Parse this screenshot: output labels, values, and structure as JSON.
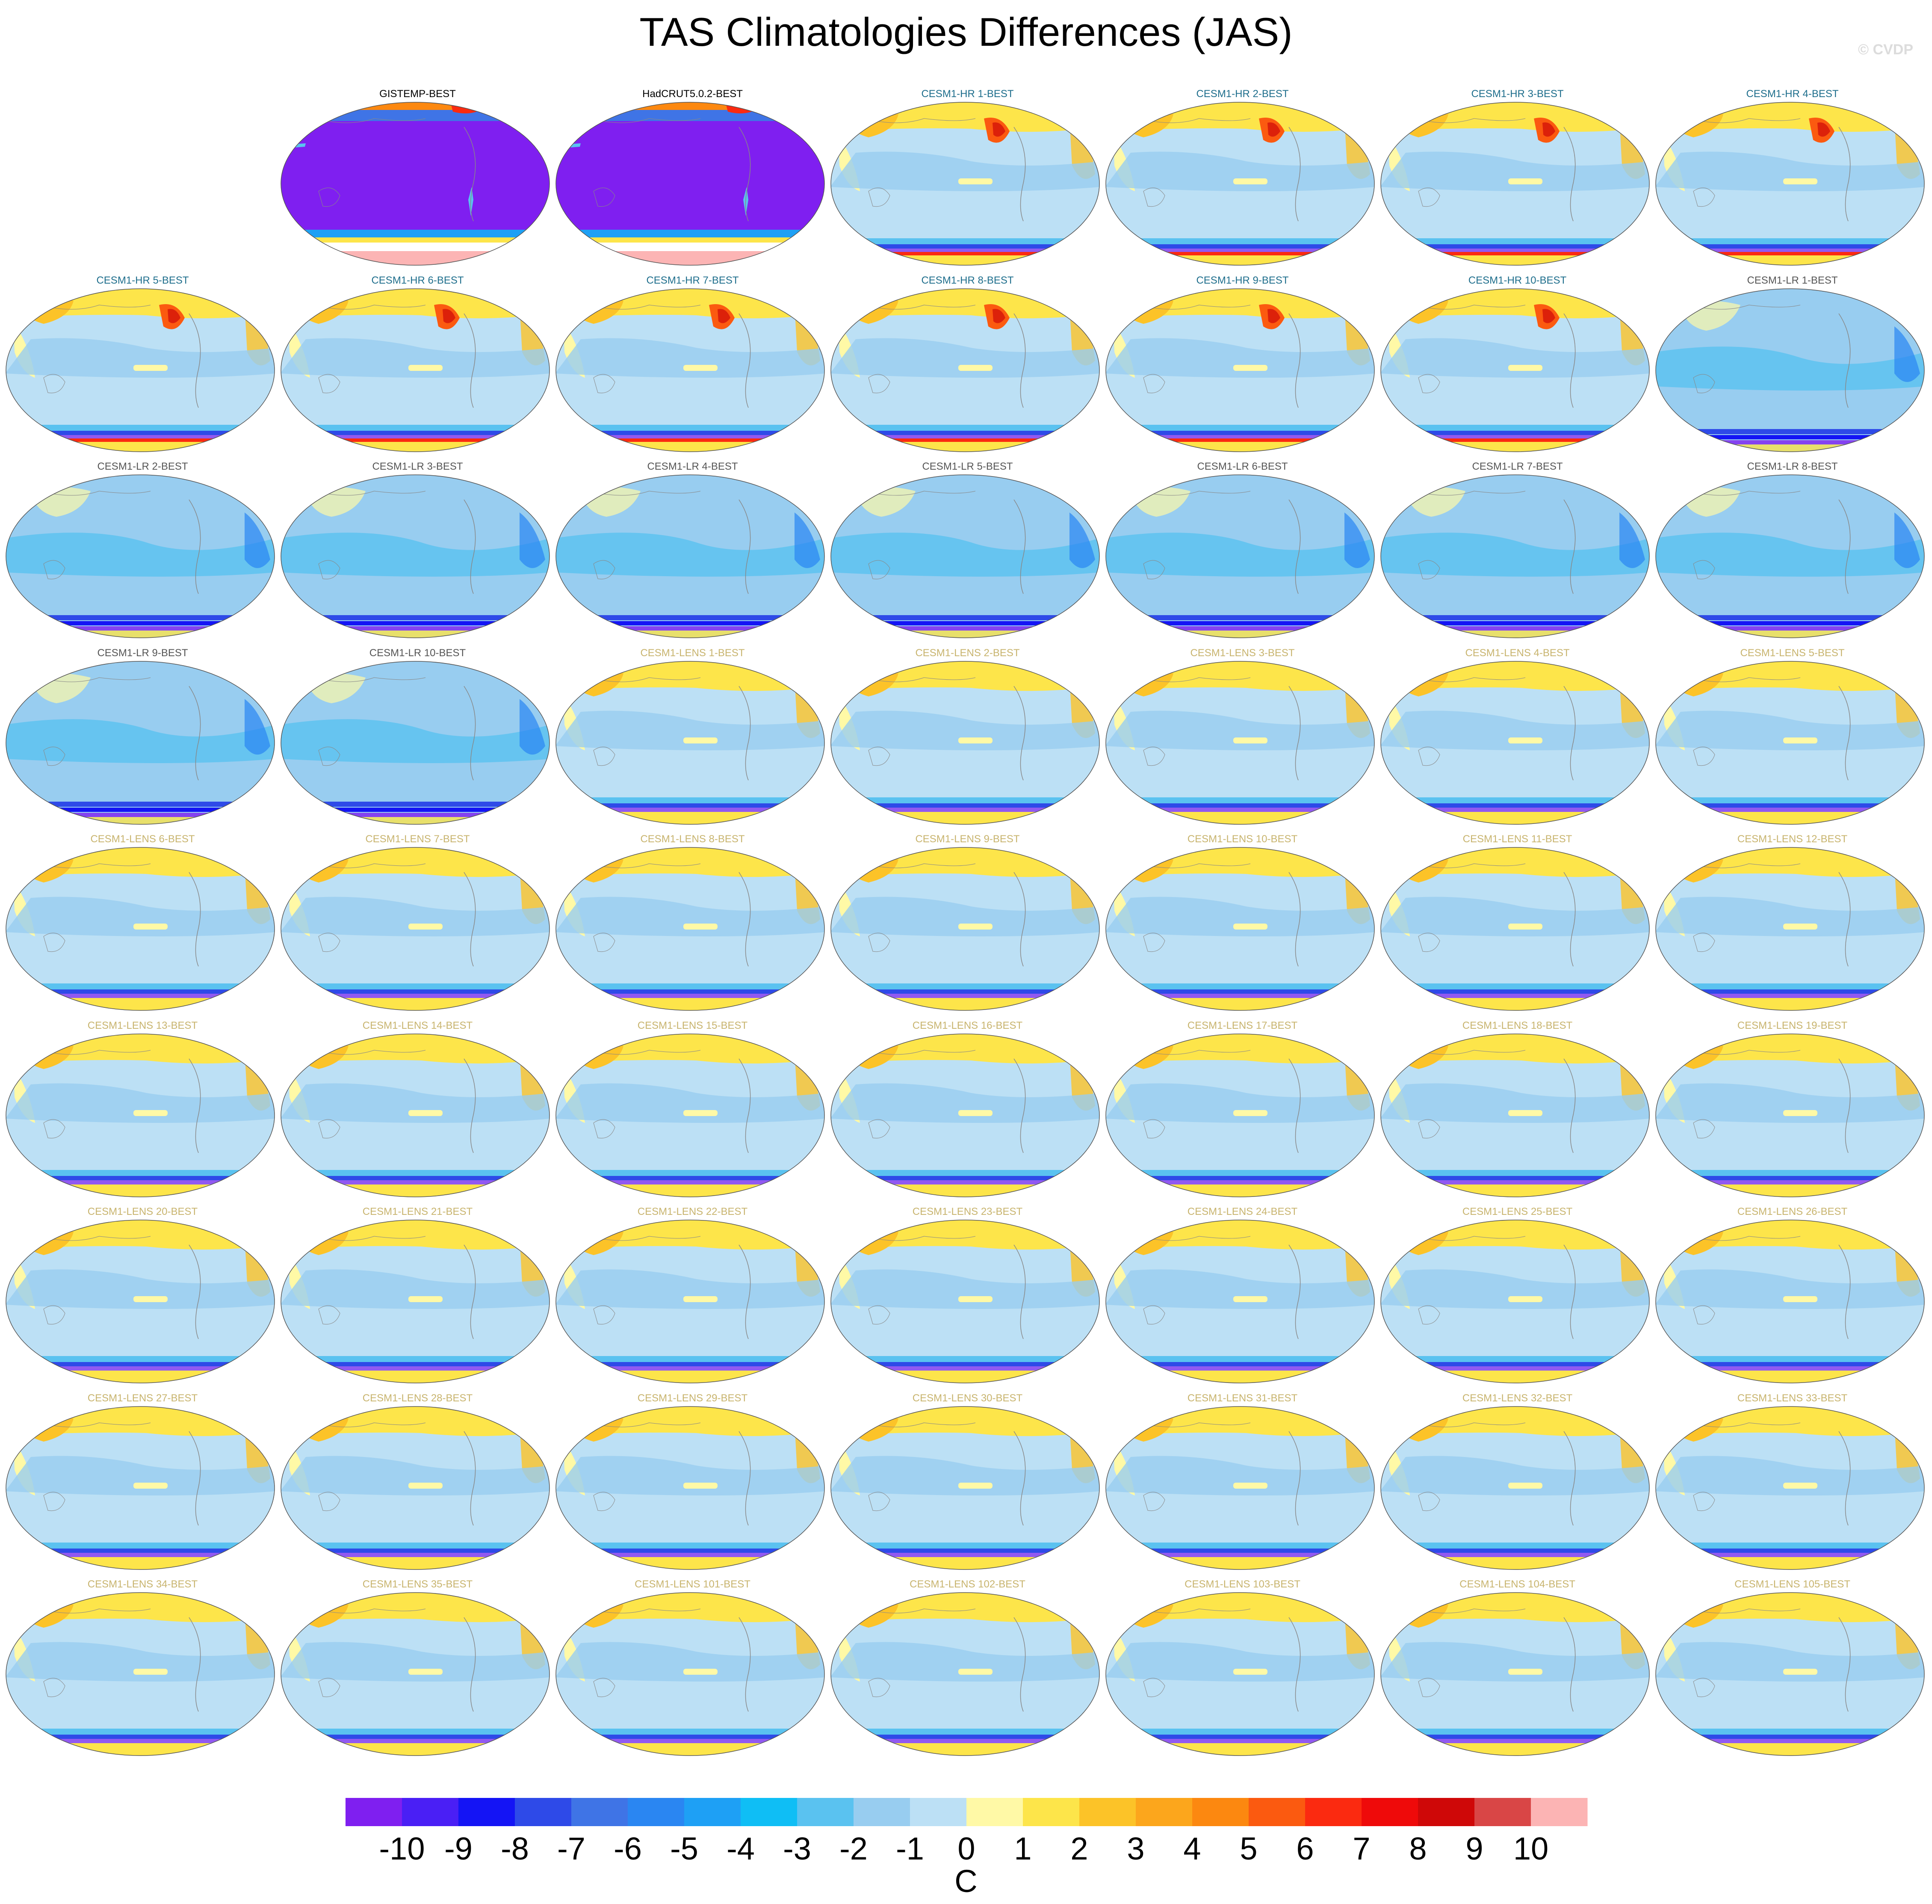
{
  "title": "TAS Climatologies Differences (JAS)",
  "watermark": "© CVDP",
  "panels": [
    {
      "label": "GISTEMP-BEST",
      "group": "obs"
    },
    {
      "label": "HadCRUT5.0.2-BEST",
      "group": "obs"
    },
    {
      "label": "CESM1-HR 1-BEST",
      "group": "hr"
    },
    {
      "label": "CESM1-HR 2-BEST",
      "group": "hr"
    },
    {
      "label": "CESM1-HR 3-BEST",
      "group": "hr"
    },
    {
      "label": "CESM1-HR 4-BEST",
      "group": "hr"
    },
    {
      "label": "CESM1-HR 5-BEST",
      "group": "hr"
    },
    {
      "label": "CESM1-HR 6-BEST",
      "group": "hr"
    },
    {
      "label": "CESM1-HR 7-BEST",
      "group": "hr"
    },
    {
      "label": "CESM1-HR 8-BEST",
      "group": "hr"
    },
    {
      "label": "CESM1-HR 9-BEST",
      "group": "hr"
    },
    {
      "label": "CESM1-HR 10-BEST",
      "group": "hr"
    },
    {
      "label": "CESM1-LR 1-BEST",
      "group": "lr"
    },
    {
      "label": "CESM1-LR 2-BEST",
      "group": "lr"
    },
    {
      "label": "CESM1-LR 3-BEST",
      "group": "lr"
    },
    {
      "label": "CESM1-LR 4-BEST",
      "group": "lr"
    },
    {
      "label": "CESM1-LR 5-BEST",
      "group": "lr"
    },
    {
      "label": "CESM1-LR 6-BEST",
      "group": "lr"
    },
    {
      "label": "CESM1-LR 7-BEST",
      "group": "lr"
    },
    {
      "label": "CESM1-LR 8-BEST",
      "group": "lr"
    },
    {
      "label": "CESM1-LR 9-BEST",
      "group": "lr"
    },
    {
      "label": "CESM1-LR 10-BEST",
      "group": "lr"
    },
    {
      "label": "CESM1-LENS 1-BEST",
      "group": "lens"
    },
    {
      "label": "CESM1-LENS 2-BEST",
      "group": "lens"
    },
    {
      "label": "CESM1-LENS 3-BEST",
      "group": "lens"
    },
    {
      "label": "CESM1-LENS 4-BEST",
      "group": "lens"
    },
    {
      "label": "CESM1-LENS 5-BEST",
      "group": "lens"
    },
    {
      "label": "CESM1-LENS 6-BEST",
      "group": "lens"
    },
    {
      "label": "CESM1-LENS 7-BEST",
      "group": "lens"
    },
    {
      "label": "CESM1-LENS 8-BEST",
      "group": "lens"
    },
    {
      "label": "CESM1-LENS 9-BEST",
      "group": "lens"
    },
    {
      "label": "CESM1-LENS 10-BEST",
      "group": "lens"
    },
    {
      "label": "CESM1-LENS 11-BEST",
      "group": "lens"
    },
    {
      "label": "CESM1-LENS 12-BEST",
      "group": "lens"
    },
    {
      "label": "CESM1-LENS 13-BEST",
      "group": "lens"
    },
    {
      "label": "CESM1-LENS 14-BEST",
      "group": "lens"
    },
    {
      "label": "CESM1-LENS 15-BEST",
      "group": "lens"
    },
    {
      "label": "CESM1-LENS 16-BEST",
      "group": "lens"
    },
    {
      "label": "CESM1-LENS 17-BEST",
      "group": "lens"
    },
    {
      "label": "CESM1-LENS 18-BEST",
      "group": "lens"
    },
    {
      "label": "CESM1-LENS 19-BEST",
      "group": "lens"
    },
    {
      "label": "CESM1-LENS 20-BEST",
      "group": "lens"
    },
    {
      "label": "CESM1-LENS 21-BEST",
      "group": "lens"
    },
    {
      "label": "CESM1-LENS 22-BEST",
      "group": "lens"
    },
    {
      "label": "CESM1-LENS 23-BEST",
      "group": "lens"
    },
    {
      "label": "CESM1-LENS 24-BEST",
      "group": "lens"
    },
    {
      "label": "CESM1-LENS 25-BEST",
      "group": "lens"
    },
    {
      "label": "CESM1-LENS 26-BEST",
      "group": "lens"
    },
    {
      "label": "CESM1-LENS 27-BEST",
      "group": "lens"
    },
    {
      "label": "CESM1-LENS 28-BEST",
      "group": "lens"
    },
    {
      "label": "CESM1-LENS 29-BEST",
      "group": "lens"
    },
    {
      "label": "CESM1-LENS 30-BEST",
      "group": "lens"
    },
    {
      "label": "CESM1-LENS 31-BEST",
      "group": "lens"
    },
    {
      "label": "CESM1-LENS 32-BEST",
      "group": "lens"
    },
    {
      "label": "CESM1-LENS 33-BEST",
      "group": "lens"
    },
    {
      "label": "CESM1-LENS 34-BEST",
      "group": "lens"
    },
    {
      "label": "CESM1-LENS 35-BEST",
      "group": "lens"
    },
    {
      "label": "CESM1-LENS 101-BEST",
      "group": "lens"
    },
    {
      "label": "CESM1-LENS 102-BEST",
      "group": "lens"
    },
    {
      "label": "CESM1-LENS 103-BEST",
      "group": "lens"
    },
    {
      "label": "CESM1-LENS 104-BEST",
      "group": "lens"
    },
    {
      "label": "CESM1-LENS 105-BEST",
      "group": "lens"
    }
  ],
  "group_label_colors": {
    "obs": "#000000",
    "hr": "#1e6e8c",
    "lr": "#555555",
    "lens": "#c8b46e"
  },
  "colorbar": {
    "units": "C",
    "tick_labels": [
      "-10",
      "-9",
      "-8",
      "-7",
      "-6",
      "-5",
      "-4",
      "-3",
      "-2",
      "-1",
      "0",
      "1",
      "2",
      "3",
      "4",
      "5",
      "6",
      "7",
      "8",
      "9",
      "10"
    ],
    "colors": [
      "#7f1ff0",
      "#4a1ff5",
      "#1414f5",
      "#2e4ae8",
      "#3f74e6",
      "#2a86f2",
      "#1ea0f5",
      "#0fbef5",
      "#5ac2f0",
      "#98cdf0",
      "#bce0f5",
      "#fff9a6",
      "#fde54a",
      "#fcc328",
      "#fca61c",
      "#fc8810",
      "#fb5a10",
      "#fb2a10",
      "#ef0a0a",
      "#cf0808",
      "#d94646",
      "#fcb4b4"
    ]
  }
}
